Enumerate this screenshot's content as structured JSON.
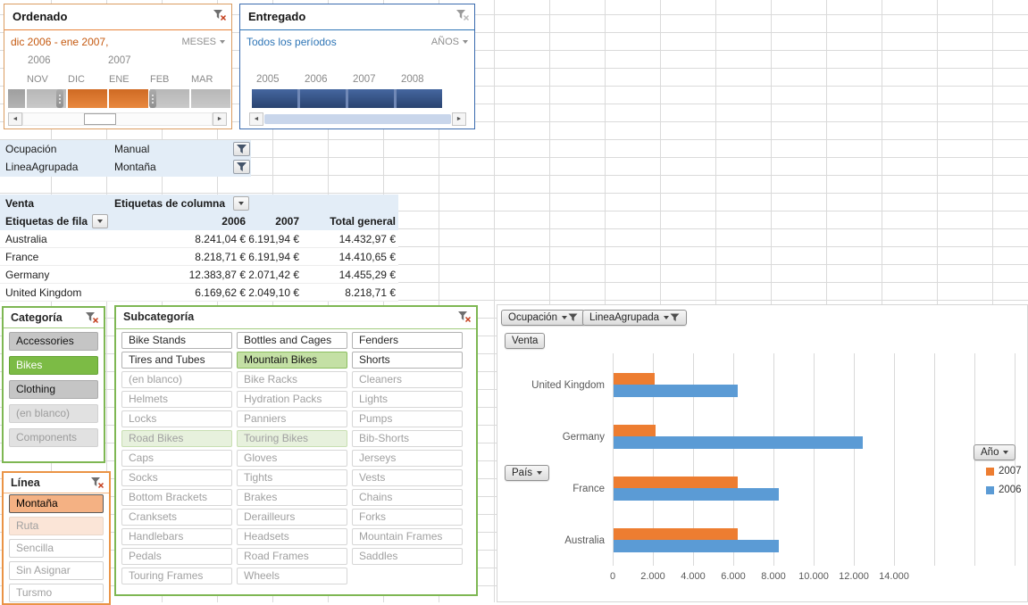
{
  "timelines": {
    "ordenado": {
      "title": "Ordenado",
      "selection_label": "dic 2006 - ene 2007,",
      "level_label": "MESES",
      "year_labels": [
        "2006",
        "2007"
      ],
      "months": [
        {
          "label": "NOV",
          "state": "unselected"
        },
        {
          "label": "DIC",
          "state": "selected"
        },
        {
          "label": "ENE",
          "state": "selected"
        },
        {
          "label": "FEB",
          "state": "unselected"
        },
        {
          "label": "MAR",
          "state": "unselected"
        }
      ],
      "accent": "#ED7D31"
    },
    "entregado": {
      "title": "Entregado",
      "selection_label": "Todos los períodos",
      "level_label": "AÑOS",
      "periods": [
        {
          "label": "2005",
          "state": "selected"
        },
        {
          "label": "2006",
          "state": "selected"
        },
        {
          "label": "2007",
          "state": "selected"
        },
        {
          "label": "2008",
          "state": "selected"
        }
      ],
      "accent": "#2E75B6"
    }
  },
  "report_filters": [
    {
      "label": "Ocupación",
      "value": "Manual"
    },
    {
      "label": "LineaAgrupada",
      "value": "Montaña"
    }
  ],
  "pivot": {
    "measure_label": "Venta",
    "column_header_label": "Etiquetas de columna",
    "row_header_label": "Etiquetas de fila",
    "columns": [
      "2006",
      "2007",
      "Total general"
    ],
    "rows": [
      {
        "label": "Australia",
        "values": [
          "8.241,04 €",
          "6.191,94 €",
          "14.432,97 €"
        ]
      },
      {
        "label": "France",
        "values": [
          "8.218,71 €",
          "6.191,94 €",
          "14.410,65 €"
        ]
      },
      {
        "label": "Germany",
        "values": [
          "12.383,87 €",
          "2.071,42 €",
          "14.455,29 €"
        ]
      },
      {
        "label": "United Kingdom",
        "values": [
          "6.169,62 €",
          "2.049,10 €",
          "8.218,71 €"
        ]
      }
    ]
  },
  "slicers": {
    "categoria": {
      "title": "Categoría",
      "items": [
        {
          "label": "Accessories",
          "state": "data"
        },
        {
          "label": "Bikes",
          "state": "selected"
        },
        {
          "label": "Clothing",
          "state": "data"
        },
        {
          "label": "(en blanco)",
          "state": "nodata"
        },
        {
          "label": "Components",
          "state": "nodata"
        }
      ]
    },
    "subcategoria": {
      "title": "Subcategoría",
      "columns": 3,
      "items": [
        {
          "label": "Bike Stands",
          "state": "data"
        },
        {
          "label": "Bottles and Cages",
          "state": "data"
        },
        {
          "label": "Fenders",
          "state": "data"
        },
        {
          "label": "Tires and Tubes",
          "state": "data"
        },
        {
          "label": "Mountain Bikes",
          "state": "selected"
        },
        {
          "label": "Shorts",
          "state": "data"
        },
        {
          "label": "(en blanco)",
          "state": "nodata"
        },
        {
          "label": "Bike Racks",
          "state": "nodata"
        },
        {
          "label": "Cleaners",
          "state": "nodata"
        },
        {
          "label": "Helmets",
          "state": "nodata"
        },
        {
          "label": "Hydration Packs",
          "state": "nodata"
        },
        {
          "label": "Lights",
          "state": "nodata"
        },
        {
          "label": "Locks",
          "state": "nodata"
        },
        {
          "label": "Panniers",
          "state": "nodata"
        },
        {
          "label": "Pumps",
          "state": "nodata"
        },
        {
          "label": "Road Bikes",
          "state": "selected-nodata"
        },
        {
          "label": "Touring Bikes",
          "state": "selected-nodata"
        },
        {
          "label": "Bib-Shorts",
          "state": "nodata"
        },
        {
          "label": "Caps",
          "state": "nodata"
        },
        {
          "label": "Gloves",
          "state": "nodata"
        },
        {
          "label": "Jerseys",
          "state": "nodata"
        },
        {
          "label": "Socks",
          "state": "nodata"
        },
        {
          "label": "Tights",
          "state": "nodata"
        },
        {
          "label": "Vests",
          "state": "nodata"
        },
        {
          "label": "Bottom Brackets",
          "state": "nodata"
        },
        {
          "label": "Brakes",
          "state": "nodata"
        },
        {
          "label": "Chains",
          "state": "nodata"
        },
        {
          "label": "Cranksets",
          "state": "nodata"
        },
        {
          "label": "Derailleurs",
          "state": "nodata"
        },
        {
          "label": "Forks",
          "state": "nodata"
        },
        {
          "label": "Handlebars",
          "state": "nodata"
        },
        {
          "label": "Headsets",
          "state": "nodata"
        },
        {
          "label": "Mountain Frames",
          "state": "nodata"
        },
        {
          "label": "Pedals",
          "state": "nodata"
        },
        {
          "label": "Road Frames",
          "state": "nodata"
        },
        {
          "label": "Saddles",
          "state": "nodata"
        },
        {
          "label": "Touring Frames",
          "state": "nodata"
        },
        {
          "label": "Wheels",
          "state": "nodata"
        }
      ]
    },
    "linea": {
      "title": "Línea",
      "items": [
        {
          "label": "Montaña",
          "state": "selected"
        },
        {
          "label": "Ruta",
          "state": "selected-nodata"
        },
        {
          "label": "Sencilla",
          "state": "nodata"
        },
        {
          "label": "Sin Asignar",
          "state": "nodata"
        },
        {
          "label": "Tursmo",
          "state": "nodata"
        }
      ]
    }
  },
  "chart_data": {
    "type": "bar",
    "orientation": "horizontal",
    "category_order": "top-to-bottom",
    "categories": [
      "United Kingdom",
      "Germany",
      "France",
      "Australia"
    ],
    "series": [
      {
        "name": "2007",
        "color": "#ED7D31",
        "values": [
          2049.1,
          2071.42,
          6191.94,
          6191.94
        ]
      },
      {
        "name": "2006",
        "color": "#5B9BD5",
        "values": [
          6169.62,
          12383.87,
          8218.71,
          8241.04
        ]
      }
    ],
    "x_ticks": [
      {
        "value": 0,
        "label": "0"
      },
      {
        "value": 2000,
        "label": "2.000"
      },
      {
        "value": 4000,
        "label": "4.000"
      },
      {
        "value": 6000,
        "label": "6.000"
      },
      {
        "value": 8000,
        "label": "8.000"
      },
      {
        "value": 10000,
        "label": "10.000"
      },
      {
        "value": 12000,
        "label": "12.000"
      },
      {
        "value": 14000,
        "label": "14.000"
      }
    ],
    "xlim": [
      0,
      14000
    ],
    "gridlines": true,
    "field_buttons": {
      "filter_1": "Ocupación",
      "filter_2": "LineaAgrupada",
      "value": "Venta",
      "axis": "País",
      "legend": "Año"
    },
    "legend": {
      "title": "Año",
      "position": "right",
      "entries": [
        {
          "label": "2007",
          "color": "#ED7D31"
        },
        {
          "label": "2006",
          "color": "#5B9BD5"
        }
      ]
    }
  }
}
